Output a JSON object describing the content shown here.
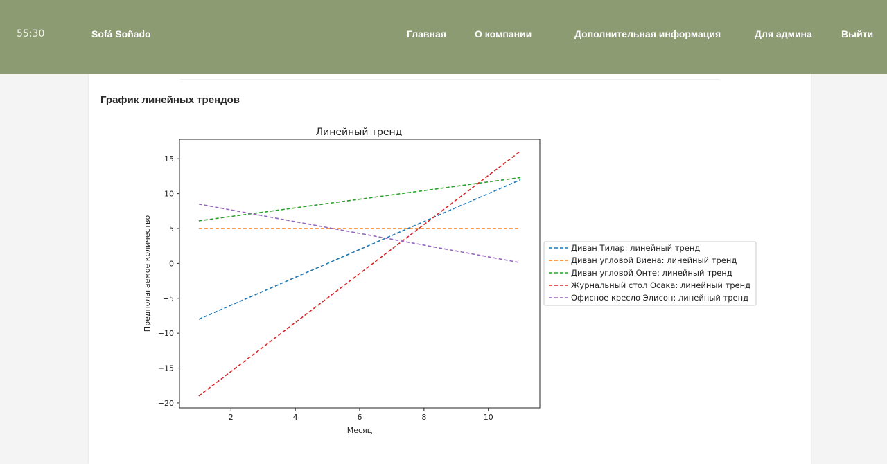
{
  "header": {
    "timer": "55:30",
    "brand": "Sofá Soñado",
    "nav": [
      "Главная",
      "О компании",
      "Дополнительная информация",
      "Для админа",
      "Выйти"
    ]
  },
  "section": {
    "title": "График линейных трендов"
  },
  "chart_data": {
    "type": "line",
    "title": "Линейный тренд",
    "xlabel": "Месяц",
    "ylabel": "Предполагаемое количество",
    "xlim": [
      0.4,
      11.6
    ],
    "ylim": [
      -20.7,
      17.8
    ],
    "xticks": [
      2,
      4,
      6,
      8,
      10
    ],
    "yticks": [
      -20,
      -15,
      -10,
      -5,
      0,
      5,
      10,
      15
    ],
    "grid": false,
    "legend_position": "outside-right",
    "line_style": "dashed",
    "series": [
      {
        "name": "Диван Тилар: линейный тренд",
        "color": "#1f77b4",
        "x": [
          1,
          11
        ],
        "y": [
          -8,
          12
        ]
      },
      {
        "name": "Диван угловой Виена: линейный тренд",
        "color": "#ff7f0e",
        "x": [
          1,
          11
        ],
        "y": [
          5,
          5
        ]
      },
      {
        "name": "Диван угловой Онте: линейный тренд",
        "color": "#2ca02c",
        "x": [
          1,
          11
        ],
        "y": [
          6.1,
          12.3
        ]
      },
      {
        "name": "Журнальный стол Осака: линейный тренд",
        "color": "#d62728",
        "x": [
          1,
          11
        ],
        "y": [
          -19,
          16.1
        ]
      },
      {
        "name": "Офисное кресло Элисон: линейный тренд",
        "color": "#9467bd",
        "x": [
          1,
          11
        ],
        "y": [
          8.5,
          0.1
        ]
      }
    ]
  }
}
